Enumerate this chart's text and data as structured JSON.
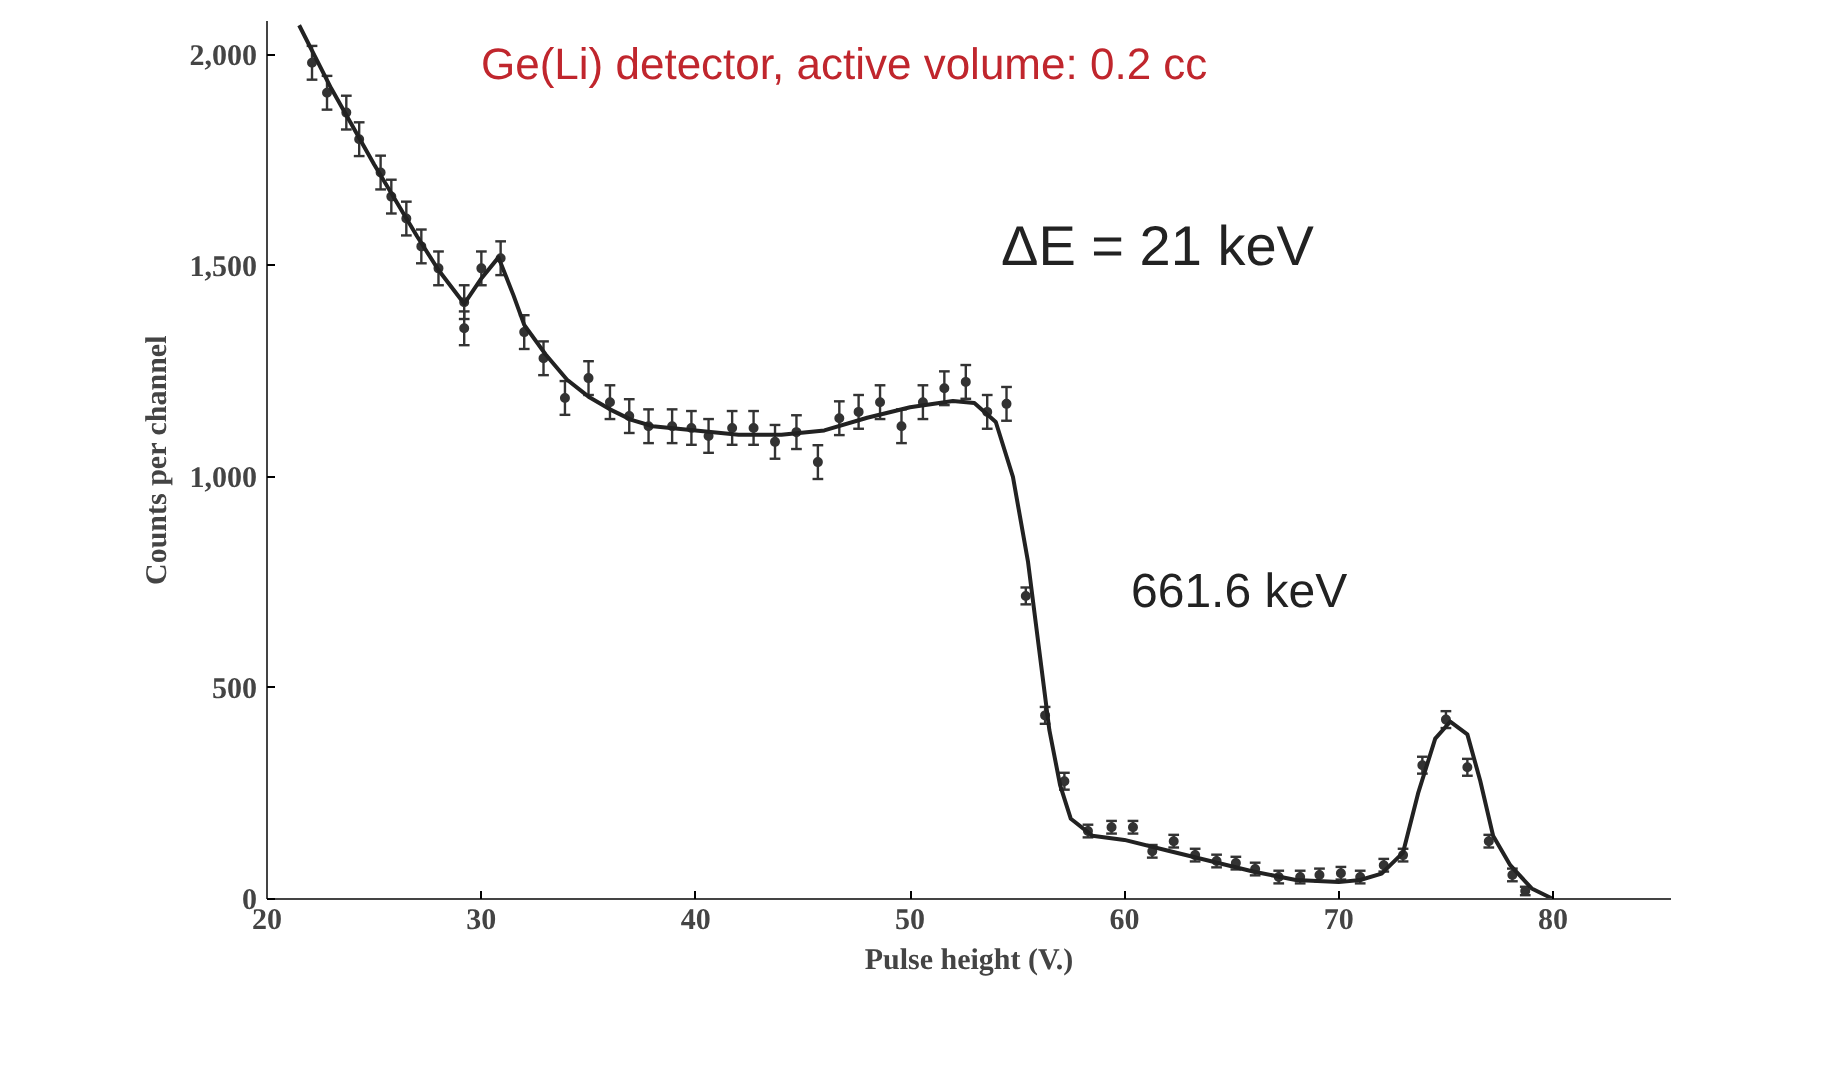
{
  "chart_data": {
    "type": "scatter",
    "xlabel": "Pulse height (V.)",
    "ylabel": "Counts per channel",
    "annotations": [
      "Ge(Li) detector,   active volume:   0.2 cc",
      "ΔE = 21 keV",
      "661.6 keV"
    ],
    "xlim": [
      20,
      85.5
    ],
    "xticks": [
      20,
      30,
      40,
      50,
      60,
      70,
      80
    ],
    "ylim": [
      0,
      2080
    ],
    "yticks": [
      0,
      500,
      {
        "value": 1000,
        "label": "1,000"
      },
      {
        "value": 1500,
        "label": "1,500"
      },
      {
        "value": 2000,
        "label": "2,000"
      }
    ],
    "grid": false,
    "marker": "circle",
    "series": [
      {
        "color": "#333333",
        "x": [
          22.1,
          22.8,
          23.7,
          24.3,
          25.3,
          25.8,
          26.5,
          27.2,
          28.0,
          29.2,
          29.2,
          30.0,
          30.9,
          32.0,
          32.9,
          33.9,
          35.0,
          36.0,
          36.9,
          37.8,
          38.9,
          39.8,
          40.6,
          41.7,
          42.7,
          43.7,
          44.7,
          45.7,
          46.7,
          47.6,
          48.6,
          49.6,
          50.6,
          51.6,
          52.6,
          53.6,
          54.5,
          55.4,
          56.3,
          57.2,
          58.3,
          59.4,
          60.4,
          61.3,
          62.3,
          63.3,
          64.3,
          65.2,
          66.1,
          67.2,
          68.2,
          69.1,
          70.1,
          71.0,
          72.1,
          73.0,
          73.9,
          75.0,
          76.0,
          77.0,
          78.1,
          78.7
        ],
        "values": [
          1981,
          1910,
          1863,
          1800,
          1721,
          1664,
          1612,
          1546,
          1494,
          1414,
          1352,
          1494,
          1518,
          1343,
          1281,
          1187,
          1234,
          1177,
          1144,
          1120,
          1120,
          1116,
          1097,
          1116,
          1116,
          1083,
          1106,
          1035,
          1139,
          1154,
          1177,
          1120,
          1177,
          1210,
          1225,
          1154,
          1173,
          718,
          435,
          279,
          161,
          170,
          170,
          113,
          137,
          104,
          90,
          85,
          71,
          52,
          52,
          57,
          61,
          52,
          80,
          104,
          317,
          425,
          312,
          137,
          57,
          19
        ],
        "errors": [
          40,
          40,
          40,
          40,
          40,
          40,
          40,
          40,
          40,
          40,
          40,
          40,
          40,
          40,
          40,
          40,
          40,
          40,
          40,
          40,
          40,
          40,
          40,
          40,
          40,
          40,
          40,
          40,
          40,
          40,
          40,
          40,
          40,
          40,
          40,
          40,
          40,
          20,
          20,
          20,
          15,
          15,
          15,
          15,
          15,
          15,
          15,
          15,
          15,
          15,
          15,
          15,
          15,
          15,
          15,
          15,
          20,
          20,
          20,
          15,
          15,
          10
        ]
      },
      {
        "type": "line",
        "color": "#222222",
        "marker": "none",
        "line_style": "solid",
        "x": [
          21.5,
          23,
          25,
          27,
          28,
          29.2,
          30,
          30.8,
          31.5,
          32,
          33,
          34,
          35,
          36,
          37,
          38,
          40,
          42,
          44,
          46,
          48,
          50,
          52,
          53,
          54,
          54.8,
          55.5,
          56,
          56.5,
          57,
          57.5,
          58.5,
          60,
          62,
          64,
          66,
          68,
          70,
          71,
          72,
          73,
          73.7,
          74.5,
          75.2,
          76,
          76.6,
          77.2,
          78,
          79,
          80
        ],
        "values": [
          2070,
          1920,
          1740,
          1570,
          1490,
          1410,
          1470,
          1520,
          1430,
          1360,
          1290,
          1230,
          1190,
          1160,
          1135,
          1120,
          1110,
          1100,
          1100,
          1110,
          1140,
          1165,
          1180,
          1175,
          1130,
          1000,
          800,
          600,
          400,
          270,
          190,
          150,
          140,
          115,
          90,
          65,
          45,
          40,
          45,
          60,
          110,
          250,
          380,
          420,
          390,
          280,
          150,
          80,
          25,
          0
        ]
      }
    ]
  }
}
